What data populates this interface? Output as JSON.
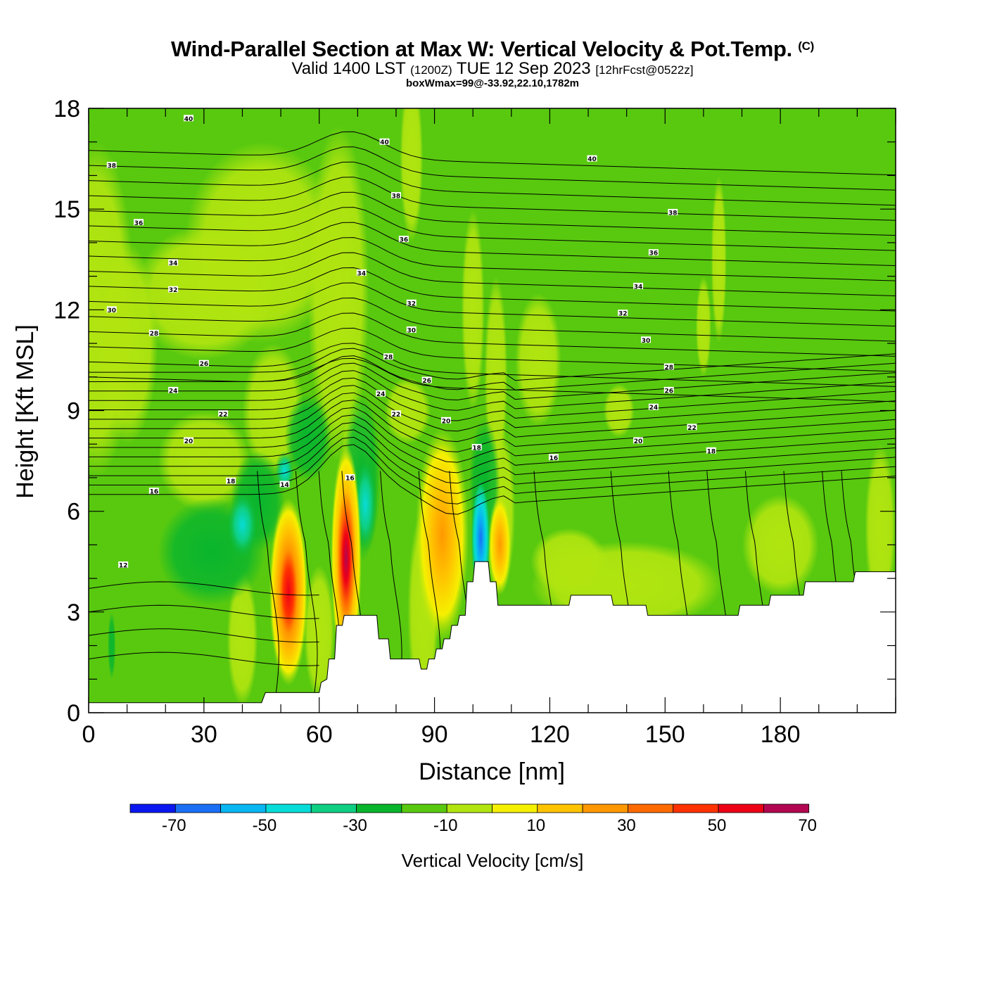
{
  "title": {
    "main": "Wind-Parallel Section at Max W: Vertical Velocity & Pot.Temp.",
    "copyright": "(C)",
    "valid": "Valid 1400 LST",
    "utc": "(1200Z)",
    "date": "TUE 12 Sep 2023",
    "forecast": "[12hrFcst@0522z]",
    "box": "boxWmax=99@-33.92,22.10,1782m"
  },
  "chart_data": {
    "type": "heatmap",
    "title": "Wind-Parallel Section at Max W: Vertical Velocity & Pot.Temp.",
    "xlabel": "Distance [nm]",
    "ylabel": "Height [Kft MSL]",
    "xlim": [
      0,
      210
    ],
    "ylim": [
      0,
      18
    ],
    "x_ticks": [
      "0",
      "30",
      "60",
      "90",
      "120",
      "150",
      "180"
    ],
    "y_ticks": [
      "0",
      "3",
      "6",
      "9",
      "12",
      "15",
      "18"
    ],
    "colorbar": {
      "title": "Vertical Velocity [cm/s]",
      "tick_labels": [
        "-70",
        "-50",
        "-30",
        "-10",
        "10",
        "30",
        "50",
        "70"
      ],
      "levels": [
        -80,
        -70,
        -60,
        -50,
        -40,
        -30,
        -20,
        -10,
        0,
        10,
        20,
        30,
        40,
        50,
        60,
        70,
        80
      ],
      "colors": [
        "#0a17f0",
        "#1a6ff5",
        "#08b6f2",
        "#08dcd8",
        "#0ecf82",
        "#09b52d",
        "#58c90f",
        "#b2e510",
        "#f5f000",
        "#ffc300",
        "#ff9800",
        "#ff6a00",
        "#ff3200",
        "#ee0016",
        "#b20750"
      ]
    },
    "vertical_velocity_features": [
      {
        "x": 52,
        "y": 3.6,
        "w_max": 45
      },
      {
        "x": 67,
        "y": 4.4,
        "w_max": 65
      },
      {
        "x": 92,
        "y": 5.3,
        "w_max": 33
      },
      {
        "x": 102,
        "y": 5.0,
        "w_max": -45
      },
      {
        "x": 40,
        "y": 5.6,
        "w_max": -25
      },
      {
        "x": 72,
        "y": 6.2,
        "w_max": -25
      }
    ],
    "theta_contour_labels": [
      {
        "text": "40",
        "x": 26,
        "y": 17.7
      },
      {
        "text": "40",
        "x": 77,
        "y": 17.0
      },
      {
        "text": "40",
        "x": 131,
        "y": 16.5
      },
      {
        "text": "38",
        "x": 6,
        "y": 16.3
      },
      {
        "text": "38",
        "x": 80,
        "y": 15.4
      },
      {
        "text": "38",
        "x": 152,
        "y": 14.9
      },
      {
        "text": "36",
        "x": 13,
        "y": 14.6
      },
      {
        "text": "36",
        "x": 82,
        "y": 14.1
      },
      {
        "text": "36",
        "x": 147,
        "y": 13.7
      },
      {
        "text": "34",
        "x": 22,
        "y": 13.4
      },
      {
        "text": "34",
        "x": 71,
        "y": 13.1
      },
      {
        "text": "34",
        "x": 143,
        "y": 12.7
      },
      {
        "text": "32",
        "x": 22,
        "y": 12.6
      },
      {
        "text": "32",
        "x": 84,
        "y": 12.2
      },
      {
        "text": "32",
        "x": 139,
        "y": 11.9
      },
      {
        "text": "30",
        "x": 6,
        "y": 12.0
      },
      {
        "text": "30",
        "x": 84,
        "y": 11.4
      },
      {
        "text": "30",
        "x": 145,
        "y": 11.1
      },
      {
        "text": "28",
        "x": 17,
        "y": 11.3
      },
      {
        "text": "28",
        "x": 78,
        "y": 10.6
      },
      {
        "text": "28",
        "x": 151,
        "y": 10.3
      },
      {
        "text": "26",
        "x": 30,
        "y": 10.4
      },
      {
        "text": "26",
        "x": 88,
        "y": 9.9
      },
      {
        "text": "26",
        "x": 151,
        "y": 9.6
      },
      {
        "text": "24",
        "x": 22,
        "y": 9.6
      },
      {
        "text": "24",
        "x": 76,
        "y": 9.5
      },
      {
        "text": "24",
        "x": 147,
        "y": 9.1
      },
      {
        "text": "22",
        "x": 35,
        "y": 8.9
      },
      {
        "text": "22",
        "x": 80,
        "y": 8.9
      },
      {
        "text": "22",
        "x": 157,
        "y": 8.5
      },
      {
        "text": "20",
        "x": 26,
        "y": 8.1
      },
      {
        "text": "20",
        "x": 93,
        "y": 8.7
      },
      {
        "text": "20",
        "x": 143,
        "y": 8.1
      },
      {
        "text": "18",
        "x": 37,
        "y": 6.9
      },
      {
        "text": "18",
        "x": 101,
        "y": 7.9
      },
      {
        "text": "18",
        "x": 162,
        "y": 7.8
      },
      {
        "text": "16",
        "x": 17,
        "y": 6.6
      },
      {
        "text": "16",
        "x": 68,
        "y": 7.0
      },
      {
        "text": "16",
        "x": 121,
        "y": 7.6
      },
      {
        "text": "14",
        "x": 51,
        "y": 6.8
      },
      {
        "text": "12",
        "x": 9,
        "y": 4.4
      }
    ],
    "terrain_height_kft": [
      {
        "x": 0,
        "y": 0.3
      },
      {
        "x": 45,
        "y": 0.3
      },
      {
        "x": 46,
        "y": 0.6
      },
      {
        "x": 60,
        "y": 0.6
      },
      {
        "x": 60.5,
        "y": 0.9
      },
      {
        "x": 62,
        "y": 1.0
      },
      {
        "x": 62.5,
        "y": 1.6
      },
      {
        "x": 64,
        "y": 1.6
      },
      {
        "x": 64.5,
        "y": 2.6
      },
      {
        "x": 66,
        "y": 2.6
      },
      {
        "x": 66.5,
        "y": 2.9
      },
      {
        "x": 75,
        "y": 2.9
      },
      {
        "x": 75.5,
        "y": 2.2
      },
      {
        "x": 78,
        "y": 2.2
      },
      {
        "x": 78.5,
        "y": 1.6
      },
      {
        "x": 86,
        "y": 1.6
      },
      {
        "x": 86.5,
        "y": 1.3
      },
      {
        "x": 88,
        "y": 1.3
      },
      {
        "x": 88.5,
        "y": 1.6
      },
      {
        "x": 90,
        "y": 1.6
      },
      {
        "x": 90.5,
        "y": 1.9
      },
      {
        "x": 92,
        "y": 1.9
      },
      {
        "x": 92.5,
        "y": 2.2
      },
      {
        "x": 94,
        "y": 2.2
      },
      {
        "x": 94.5,
        "y": 2.6
      },
      {
        "x": 96,
        "y": 2.6
      },
      {
        "x": 96.5,
        "y": 2.9
      },
      {
        "x": 98,
        "y": 2.9
      },
      {
        "x": 98.5,
        "y": 3.9
      },
      {
        "x": 100,
        "y": 3.9
      },
      {
        "x": 100.5,
        "y": 4.5
      },
      {
        "x": 104,
        "y": 4.5
      },
      {
        "x": 104.5,
        "y": 3.9
      },
      {
        "x": 106,
        "y": 3.9
      },
      {
        "x": 106.5,
        "y": 3.2
      },
      {
        "x": 125,
        "y": 3.2
      },
      {
        "x": 125.5,
        "y": 3.5
      },
      {
        "x": 136,
        "y": 3.5
      },
      {
        "x": 136.5,
        "y": 3.2
      },
      {
        "x": 145,
        "y": 3.2
      },
      {
        "x": 145.5,
        "y": 2.9
      },
      {
        "x": 169,
        "y": 2.9
      },
      {
        "x": 169.5,
        "y": 3.2
      },
      {
        "x": 177,
        "y": 3.2
      },
      {
        "x": 177.5,
        "y": 3.5
      },
      {
        "x": 186,
        "y": 3.5
      },
      {
        "x": 186.5,
        "y": 3.9
      },
      {
        "x": 199,
        "y": 3.9
      },
      {
        "x": 199.5,
        "y": 4.2
      },
      {
        "x": 210,
        "y": 4.2
      }
    ]
  }
}
